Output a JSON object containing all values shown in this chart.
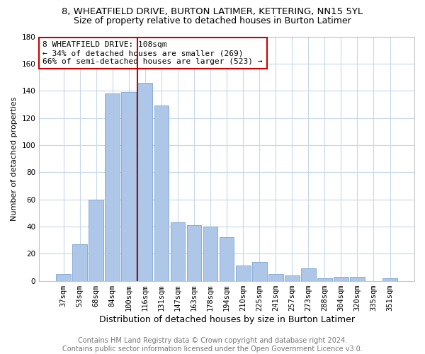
{
  "title": "8, WHEATFIELD DRIVE, BURTON LATIMER, KETTERING, NN15 5YL",
  "subtitle": "Size of property relative to detached houses in Burton Latimer",
  "xlabel": "Distribution of detached houses by size in Burton Latimer",
  "ylabel": "Number of detached properties",
  "categories": [
    "37sqm",
    "53sqm",
    "68sqm",
    "84sqm",
    "100sqm",
    "116sqm",
    "131sqm",
    "147sqm",
    "163sqm",
    "178sqm",
    "194sqm",
    "210sqm",
    "225sqm",
    "241sqm",
    "257sqm",
    "273sqm",
    "288sqm",
    "304sqm",
    "320sqm",
    "335sqm",
    "351sqm"
  ],
  "values": [
    5,
    27,
    60,
    138,
    139,
    146,
    129,
    43,
    41,
    40,
    32,
    11,
    14,
    5,
    4,
    9,
    2,
    3,
    3,
    0,
    2
  ],
  "bar_color": "#aec6e8",
  "bar_edge_color": "#6699cc",
  "bar_edge_width": 0.5,
  "vline_index": 5,
  "vline_color": "#cc0000",
  "vline_linewidth": 1.5,
  "annotation_text": "8 WHEATFIELD DRIVE: 108sqm\n← 34% of detached houses are smaller (269)\n66% of semi-detached houses are larger (523) →",
  "annotation_box_color": "#ffffff",
  "annotation_box_edge": "#cc0000",
  "ylim": [
    0,
    180
  ],
  "yticks": [
    0,
    20,
    40,
    60,
    80,
    100,
    120,
    140,
    160,
    180
  ],
  "footer_line1": "Contains HM Land Registry data © Crown copyright and database right 2024.",
  "footer_line2": "Contains public sector information licensed under the Open Government Licence v3.0.",
  "background_color": "#ffffff",
  "grid_color": "#c8d8e8",
  "title_fontsize": 9.5,
  "subtitle_fontsize": 9,
  "xlabel_fontsize": 9,
  "ylabel_fontsize": 8,
  "tick_fontsize": 7.5,
  "annotation_fontsize": 8,
  "footer_fontsize": 7
}
